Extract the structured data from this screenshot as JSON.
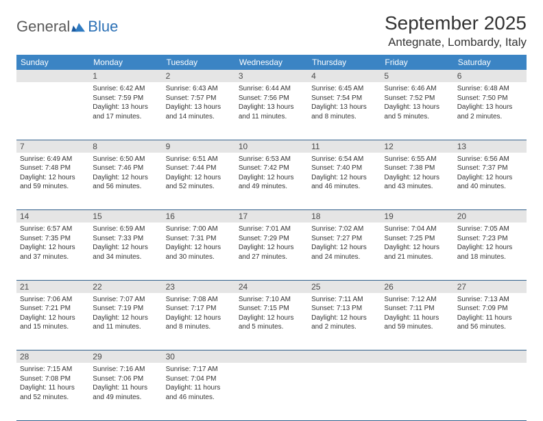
{
  "brand": {
    "general": "General",
    "blue": "Blue"
  },
  "title": "September 2025",
  "location": "Antegnate, Lombardy, Italy",
  "colors": {
    "header_bg": "#3b84c4",
    "header_text": "#ffffff",
    "daynum_bg": "#e5e5e5",
    "daynum_text": "#4a4a4a",
    "cell_border": "#2f5e8a",
    "body_text": "#333333",
    "logo_gray": "#5a5a5a",
    "logo_blue": "#2a6fb5"
  },
  "typography": {
    "title_fontsize": 28,
    "location_fontsize": 17,
    "header_fontsize": 12,
    "daynum_fontsize": 12,
    "cell_fontsize": 10
  },
  "day_headers": [
    "Sunday",
    "Monday",
    "Tuesday",
    "Wednesday",
    "Thursday",
    "Friday",
    "Saturday"
  ],
  "weeks": [
    {
      "nums": [
        "",
        "1",
        "2",
        "3",
        "4",
        "5",
        "6"
      ],
      "cells": [
        null,
        {
          "sunrise": "Sunrise: 6:42 AM",
          "sunset": "Sunset: 7:59 PM",
          "daylight": "Daylight: 13 hours and 17 minutes."
        },
        {
          "sunrise": "Sunrise: 6:43 AM",
          "sunset": "Sunset: 7:57 PM",
          "daylight": "Daylight: 13 hours and 14 minutes."
        },
        {
          "sunrise": "Sunrise: 6:44 AM",
          "sunset": "Sunset: 7:56 PM",
          "daylight": "Daylight: 13 hours and 11 minutes."
        },
        {
          "sunrise": "Sunrise: 6:45 AM",
          "sunset": "Sunset: 7:54 PM",
          "daylight": "Daylight: 13 hours and 8 minutes."
        },
        {
          "sunrise": "Sunrise: 6:46 AM",
          "sunset": "Sunset: 7:52 PM",
          "daylight": "Daylight: 13 hours and 5 minutes."
        },
        {
          "sunrise": "Sunrise: 6:48 AM",
          "sunset": "Sunset: 7:50 PM",
          "daylight": "Daylight: 13 hours and 2 minutes."
        }
      ]
    },
    {
      "nums": [
        "7",
        "8",
        "9",
        "10",
        "11",
        "12",
        "13"
      ],
      "cells": [
        {
          "sunrise": "Sunrise: 6:49 AM",
          "sunset": "Sunset: 7:48 PM",
          "daylight": "Daylight: 12 hours and 59 minutes."
        },
        {
          "sunrise": "Sunrise: 6:50 AM",
          "sunset": "Sunset: 7:46 PM",
          "daylight": "Daylight: 12 hours and 56 minutes."
        },
        {
          "sunrise": "Sunrise: 6:51 AM",
          "sunset": "Sunset: 7:44 PM",
          "daylight": "Daylight: 12 hours and 52 minutes."
        },
        {
          "sunrise": "Sunrise: 6:53 AM",
          "sunset": "Sunset: 7:42 PM",
          "daylight": "Daylight: 12 hours and 49 minutes."
        },
        {
          "sunrise": "Sunrise: 6:54 AM",
          "sunset": "Sunset: 7:40 PM",
          "daylight": "Daylight: 12 hours and 46 minutes."
        },
        {
          "sunrise": "Sunrise: 6:55 AM",
          "sunset": "Sunset: 7:38 PM",
          "daylight": "Daylight: 12 hours and 43 minutes."
        },
        {
          "sunrise": "Sunrise: 6:56 AM",
          "sunset": "Sunset: 7:37 PM",
          "daylight": "Daylight: 12 hours and 40 minutes."
        }
      ]
    },
    {
      "nums": [
        "14",
        "15",
        "16",
        "17",
        "18",
        "19",
        "20"
      ],
      "cells": [
        {
          "sunrise": "Sunrise: 6:57 AM",
          "sunset": "Sunset: 7:35 PM",
          "daylight": "Daylight: 12 hours and 37 minutes."
        },
        {
          "sunrise": "Sunrise: 6:59 AM",
          "sunset": "Sunset: 7:33 PM",
          "daylight": "Daylight: 12 hours and 34 minutes."
        },
        {
          "sunrise": "Sunrise: 7:00 AM",
          "sunset": "Sunset: 7:31 PM",
          "daylight": "Daylight: 12 hours and 30 minutes."
        },
        {
          "sunrise": "Sunrise: 7:01 AM",
          "sunset": "Sunset: 7:29 PM",
          "daylight": "Daylight: 12 hours and 27 minutes."
        },
        {
          "sunrise": "Sunrise: 7:02 AM",
          "sunset": "Sunset: 7:27 PM",
          "daylight": "Daylight: 12 hours and 24 minutes."
        },
        {
          "sunrise": "Sunrise: 7:04 AM",
          "sunset": "Sunset: 7:25 PM",
          "daylight": "Daylight: 12 hours and 21 minutes."
        },
        {
          "sunrise": "Sunrise: 7:05 AM",
          "sunset": "Sunset: 7:23 PM",
          "daylight": "Daylight: 12 hours and 18 minutes."
        }
      ]
    },
    {
      "nums": [
        "21",
        "22",
        "23",
        "24",
        "25",
        "26",
        "27"
      ],
      "cells": [
        {
          "sunrise": "Sunrise: 7:06 AM",
          "sunset": "Sunset: 7:21 PM",
          "daylight": "Daylight: 12 hours and 15 minutes."
        },
        {
          "sunrise": "Sunrise: 7:07 AM",
          "sunset": "Sunset: 7:19 PM",
          "daylight": "Daylight: 12 hours and 11 minutes."
        },
        {
          "sunrise": "Sunrise: 7:08 AM",
          "sunset": "Sunset: 7:17 PM",
          "daylight": "Daylight: 12 hours and 8 minutes."
        },
        {
          "sunrise": "Sunrise: 7:10 AM",
          "sunset": "Sunset: 7:15 PM",
          "daylight": "Daylight: 12 hours and 5 minutes."
        },
        {
          "sunrise": "Sunrise: 7:11 AM",
          "sunset": "Sunset: 7:13 PM",
          "daylight": "Daylight: 12 hours and 2 minutes."
        },
        {
          "sunrise": "Sunrise: 7:12 AM",
          "sunset": "Sunset: 7:11 PM",
          "daylight": "Daylight: 11 hours and 59 minutes."
        },
        {
          "sunrise": "Sunrise: 7:13 AM",
          "sunset": "Sunset: 7:09 PM",
          "daylight": "Daylight: 11 hours and 56 minutes."
        }
      ]
    },
    {
      "nums": [
        "28",
        "29",
        "30",
        "",
        "",
        "",
        ""
      ],
      "cells": [
        {
          "sunrise": "Sunrise: 7:15 AM",
          "sunset": "Sunset: 7:08 PM",
          "daylight": "Daylight: 11 hours and 52 minutes."
        },
        {
          "sunrise": "Sunrise: 7:16 AM",
          "sunset": "Sunset: 7:06 PM",
          "daylight": "Daylight: 11 hours and 49 minutes."
        },
        {
          "sunrise": "Sunrise: 7:17 AM",
          "sunset": "Sunset: 7:04 PM",
          "daylight": "Daylight: 11 hours and 46 minutes."
        },
        null,
        null,
        null,
        null
      ]
    }
  ]
}
